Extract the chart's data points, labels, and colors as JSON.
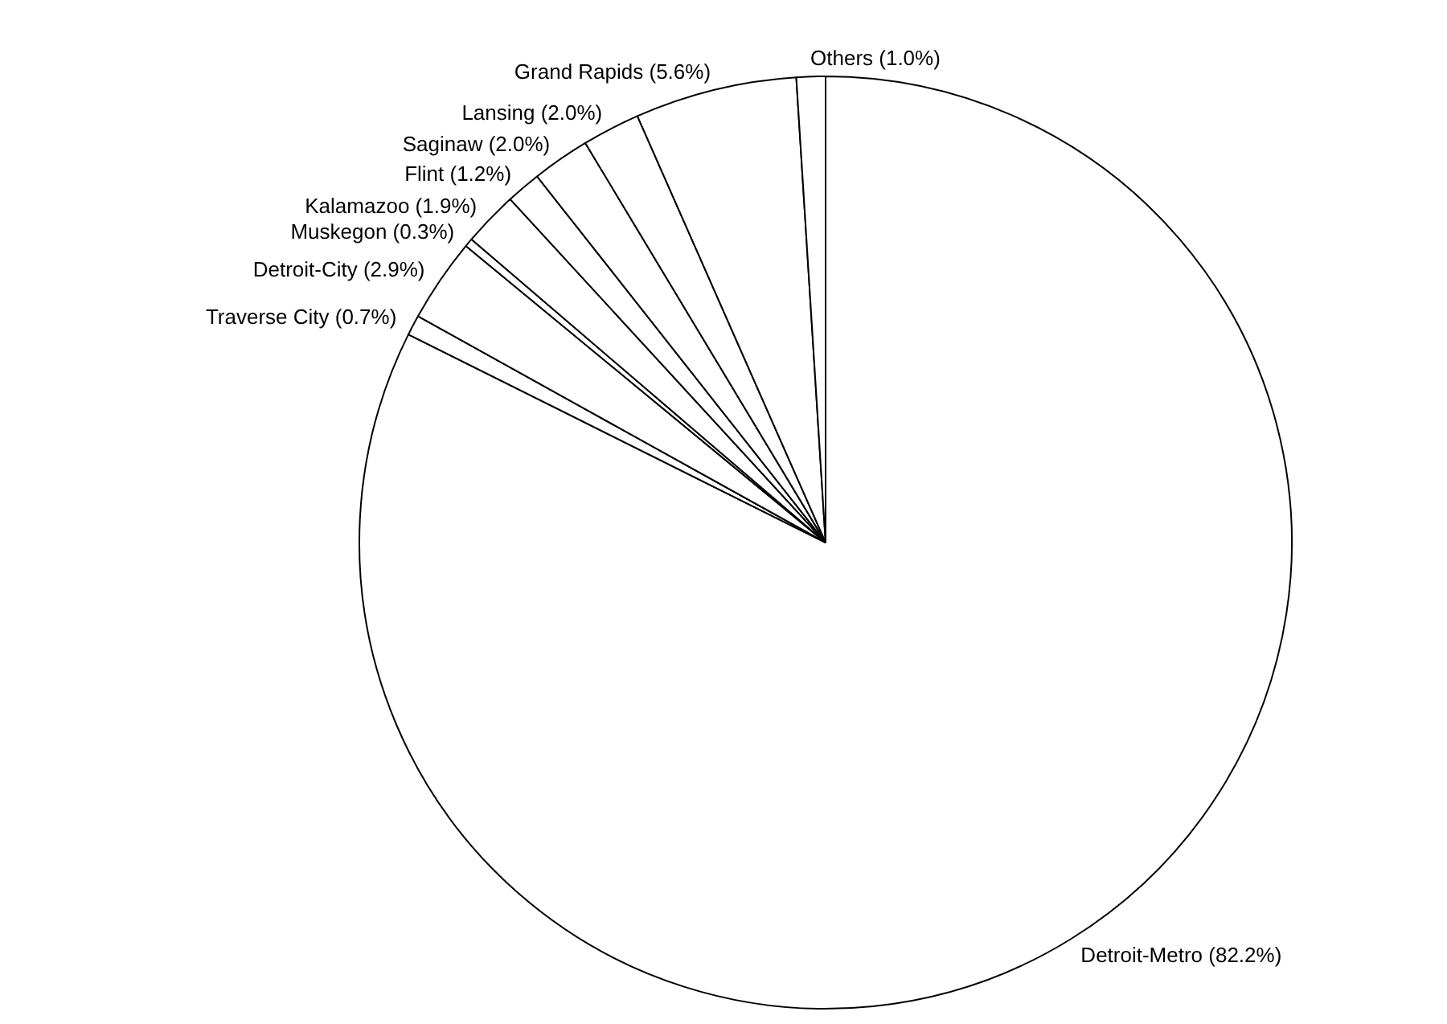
{
  "chart_data": {
    "type": "pie",
    "categories": [
      "Detroit-Metro",
      "Traverse City",
      "Detroit-City",
      "Muskegon",
      "Kalamazoo",
      "Flint",
      "Saginaw",
      "Lansing",
      "Grand Rapids",
      "Others"
    ],
    "values": [
      82.2,
      0.7,
      2.9,
      0.3,
      1.9,
      1.2,
      2.0,
      2.0,
      5.6,
      1.0
    ],
    "value_labels": [
      "(82.2%)",
      "(0.7%)",
      "(2.9%)",
      "(0.3%)",
      "(1.9%)",
      "(1.2%)",
      "(2.0%)",
      "(2.0%)",
      "(5.6%)",
      "(1.0%)"
    ],
    "colors": [
      "#ffffff",
      "#ffffff",
      "#ffffff",
      "#ffffff",
      "#ffffff",
      "#ffffff",
      "#ffffff",
      "#ffffff",
      "#ffffff",
      "#ffffff"
    ]
  }
}
